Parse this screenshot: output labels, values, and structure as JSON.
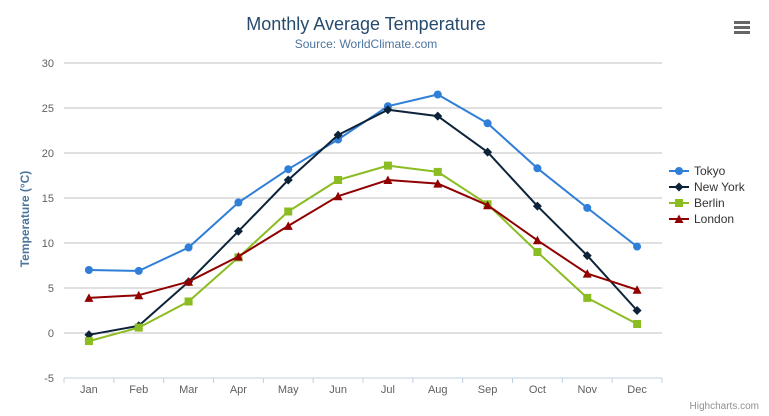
{
  "chart": {
    "export_icon": "hamburger-icon",
    "credits_label": "Highcharts.com"
  },
  "style": {
    "title_color": "#274b6d",
    "subtitle_color": "#4d759e",
    "axis_label_color": "#606060",
    "axis_title_color": "#4d759e",
    "grid_color": "#c0c0c0",
    "xaxis_line_color": "#c0d0e0",
    "legend_text_color": "#333333",
    "credits_color": "#909090",
    "background": "#ffffff"
  },
  "chart_data": {
    "type": "line",
    "title": "Monthly Average Temperature",
    "subtitle": "Source: WorldClimate.com",
    "categories": [
      "Jan",
      "Feb",
      "Mar",
      "Apr",
      "May",
      "Jun",
      "Jul",
      "Aug",
      "Sep",
      "Oct",
      "Nov",
      "Dec"
    ],
    "series": [
      {
        "name": "Tokyo",
        "color": "#2f7ed8",
        "marker": "circle",
        "values": [
          7.0,
          6.9,
          9.5,
          14.5,
          18.2,
          21.5,
          25.2,
          26.5,
          23.3,
          18.3,
          13.9,
          9.6
        ]
      },
      {
        "name": "New York",
        "color": "#0d233a",
        "marker": "diamond",
        "values": [
          -0.2,
          0.8,
          5.7,
          11.3,
          17.0,
          22.0,
          24.8,
          24.1,
          20.1,
          14.1,
          8.6,
          2.5
        ]
      },
      {
        "name": "Berlin",
        "color": "#8bbc21",
        "marker": "square",
        "values": [
          -0.9,
          0.6,
          3.5,
          8.4,
          13.5,
          17.0,
          18.6,
          17.9,
          14.3,
          9.0,
          3.9,
          1.0
        ]
      },
      {
        "name": "London",
        "color": "#910000",
        "marker": "triangle",
        "values": [
          3.9,
          4.2,
          5.7,
          8.5,
          11.9,
          15.2,
          17.0,
          16.6,
          14.2,
          10.3,
          6.6,
          4.8
        ]
      }
    ],
    "xlabel": "",
    "ylabel": "Temperature (°C)",
    "ylim": [
      -5,
      30
    ],
    "ytick_interval": 5,
    "yticks": [
      -5,
      0,
      5,
      10,
      15,
      20,
      25,
      30
    ],
    "grid": true,
    "legend_position": "right",
    "credits": "Highcharts.com"
  }
}
